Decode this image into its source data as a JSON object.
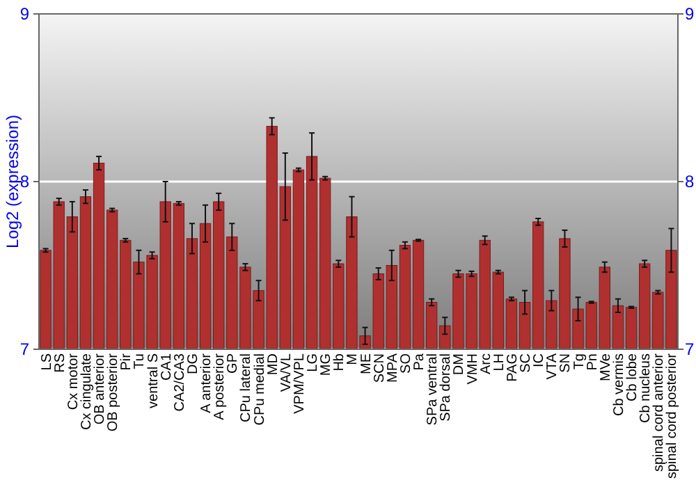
{
  "chart_data": {
    "type": "bar",
    "ylabel": "Log2 (expression)",
    "categories": [
      "LS",
      "RS",
      "Cx motor",
      "Cx cingulate",
      "OB anterior",
      "OB posterior",
      "Pir",
      "Tu",
      "ventral S",
      "CA1",
      "CA2/CA3",
      "DG",
      "A anterior",
      "A posterior",
      "GP",
      "CPu lateral",
      "CPu medial",
      "MD",
      "VA/VL",
      "VPM/VPL",
      "LG",
      "MG",
      "Hb",
      "M",
      "ME",
      "SCN",
      "MPA",
      "SO",
      "Pa",
      "SPa ventral",
      "SPa dorsal",
      "DM",
      "VMH",
      "Arc",
      "LH",
      "PAG",
      "SC",
      "IC",
      "VTA",
      "SN",
      "Tg",
      "Pn",
      "MVe",
      "Cb vermis",
      "Cb lobe",
      "Cb nucleus",
      "spinal cord anterior",
      "spinal cord posterior"
    ],
    "values": [
      7.59,
      7.88,
      7.79,
      7.91,
      8.11,
      7.83,
      7.65,
      7.52,
      7.56,
      7.88,
      7.87,
      7.66,
      7.75,
      7.88,
      7.67,
      7.49,
      7.35,
      8.33,
      7.97,
      8.07,
      8.15,
      8.02,
      7.51,
      7.79,
      7.08,
      7.45,
      7.5,
      7.62,
      7.65,
      7.28,
      7.14,
      7.45,
      7.45,
      7.65,
      7.46,
      7.3,
      7.28,
      7.76,
      7.29,
      7.66,
      7.24,
      7.28,
      7.49,
      7.26,
      7.25,
      7.51,
      7.34,
      7.59
    ],
    "errors": [
      0.01,
      0.02,
      0.09,
      0.04,
      0.04,
      0.01,
      0.01,
      0.07,
      0.02,
      0.12,
      0.01,
      0.09,
      0.11,
      0.05,
      0.08,
      0.02,
      0.06,
      0.05,
      0.2,
      0.01,
      0.14,
      0.01,
      0.02,
      0.12,
      0.05,
      0.035,
      0.09,
      0.02,
      0.005,
      0.02,
      0.05,
      0.02,
      0.015,
      0.025,
      0.01,
      0.01,
      0.07,
      0.02,
      0.06,
      0.05,
      0.07,
      0.005,
      0.03,
      0.04,
      0.005,
      0.02,
      0.01,
      0.13
    ],
    "color": "#b03030",
    "ylim": [
      7,
      9
    ],
    "yticks": [
      7,
      8,
      9
    ],
    "y2lim": [
      7,
      9
    ],
    "y2ticks": [
      7,
      8,
      9
    ],
    "grid": "y"
  }
}
